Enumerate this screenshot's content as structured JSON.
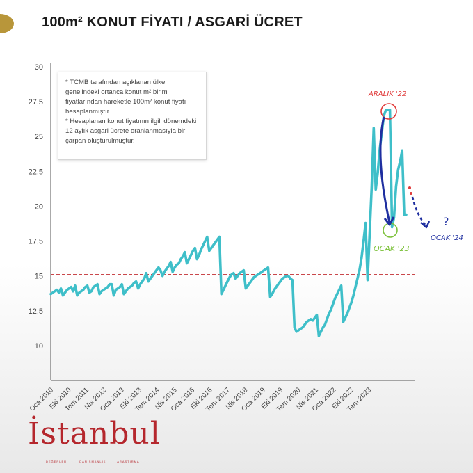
{
  "page": {
    "title": "100m² KONUT FİYATI / ASGARİ ÜCRET",
    "note_lines": [
      "* TCMB tarafından açıklanan ülke genelindeki ortanca konut m² birim fiyatlarından hareketle 100m² konut fiyatı hesaplanmıştır.",
      "* Hesaplanan konut fiyatının ilgili dönemdeki 12 aylık asgari ücrete oranlanmasıyla bir çarpan oluşturulmuştur."
    ],
    "logo": {
      "text": "İstanbul",
      "tags": [
        "DEĞERLERİ",
        "DANIŞMANLIK",
        "ARAŞTIRMA"
      ]
    },
    "annotations": {
      "peak": "ARALIK '22",
      "trough": "OCAK '23",
      "forecast": "OCAK '24",
      "question": "?"
    },
    "colors": {
      "line": "#3fbfc9",
      "reference": "#c9474b",
      "title": "#1a1a1a",
      "peak_marker": "#e03a3a",
      "trough_marker": "#7cc13a",
      "arrow": "#1f2fa0",
      "brand": "#b5272d"
    }
  },
  "chart_data": {
    "type": "line",
    "title": "100m² KONUT FİYATI / ASGARİ ÜCRET",
    "xlabel": "",
    "ylabel": "",
    "ylim": [
      7.5,
      30
    ],
    "yticks": [
      "30",
      "27,5",
      "25",
      "22,5",
      "20",
      "17,5",
      "15",
      "12,5",
      "10"
    ],
    "ytick_values": [
      30,
      27.5,
      25,
      22.5,
      20,
      17.5,
      15,
      12.5,
      10
    ],
    "xticks": [
      "Oca 2010",
      "Eki 2010",
      "Tem 2011",
      "Nis 2012",
      "Oca 2013",
      "Eki 2013",
      "Tem 2014",
      "Nis 2015",
      "Oca 2016",
      "Eki 2016",
      "Tem 2017",
      "Nis 2018",
      "Oca 2019",
      "Eki 2019",
      "Tem 2020",
      "Nis 2021",
      "Oca 2022",
      "Eki 2022",
      "Tem 2023"
    ],
    "reference_line": 15.1,
    "grid": false,
    "series": [
      {
        "values": [
          13.7,
          13.8,
          13.9,
          14.0,
          13.8,
          14.1,
          13.6,
          13.8,
          14.0,
          14.1,
          14.2,
          13.9,
          14.3,
          13.6,
          13.8,
          13.9,
          14.0,
          14.2,
          14.3,
          13.8,
          13.9,
          14.2,
          14.3,
          14.4,
          13.7,
          13.9,
          14.0,
          14.1,
          14.2,
          14.4,
          14.4,
          13.6,
          14.0,
          14.1,
          14.2,
          14.4,
          13.7,
          13.9,
          14.1,
          14.2,
          14.3,
          14.5,
          14.6,
          14.1,
          14.4,
          14.6,
          14.8,
          15.2,
          14.6,
          14.8,
          15.0,
          15.2,
          15.4,
          15.6,
          15.4,
          15.0,
          15.3,
          15.5,
          15.7,
          16.0,
          15.3,
          15.6,
          15.8,
          15.9,
          16.2,
          16.4,
          16.7,
          15.9,
          16.2,
          16.5,
          16.8,
          17.0,
          16.2,
          16.5,
          16.9,
          17.2,
          17.5,
          17.8,
          16.8,
          17.0,
          17.2,
          17.4,
          17.6,
          17.8,
          13.7,
          14.0,
          14.3,
          14.6,
          14.9,
          15.1,
          15.2,
          14.8,
          15.0,
          15.2,
          15.3,
          15.4,
          14.1,
          14.3,
          14.5,
          14.7,
          14.9,
          15.0,
          15.1,
          15.2,
          15.3,
          15.4,
          15.5,
          15.6,
          13.5,
          13.7,
          14.0,
          14.2,
          14.4,
          14.6,
          14.8,
          14.9,
          15.0,
          15.0,
          14.8,
          14.7,
          11.3,
          11.0,
          11.1,
          11.2,
          11.3,
          11.5,
          11.7,
          11.8,
          11.9,
          11.8,
          12.0,
          12.2,
          10.7,
          11.0,
          11.3,
          11.5,
          11.9,
          12.3,
          12.6,
          13.0,
          13.4,
          13.7,
          14.0,
          14.3,
          11.7,
          12.0,
          12.3,
          12.7,
          13.1,
          13.6,
          14.2,
          14.8,
          15.4,
          16.3,
          17.5,
          18.8,
          14.7,
          18.0,
          21.4,
          25.6,
          21.2,
          22.4,
          24.1,
          25.3,
          26.5,
          26.9,
          26.9,
          26.9,
          18.5,
          19.2,
          21.4,
          22.6,
          23.2,
          24.0,
          19.4,
          19.4
        ]
      }
    ]
  }
}
